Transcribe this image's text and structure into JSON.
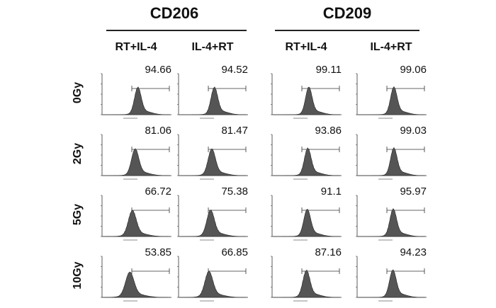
{
  "chart_data": {
    "type": "histogram-grid",
    "groups": [
      {
        "title": "CD206",
        "columns": [
          "RT+IL-4",
          "IL-4+RT"
        ]
      },
      {
        "title": "CD209",
        "columns": [
          "RT+IL-4",
          "IL-4+RT"
        ]
      }
    ],
    "rows": [
      "0Gy",
      "2Gy",
      "5Gy",
      "10Gy"
    ],
    "values": [
      [
        94.66,
        94.52,
        99.11,
        99.06
      ],
      [
        81.06,
        81.47,
        93.86,
        99.03
      ],
      [
        66.72,
        75.38,
        91.1,
        95.97
      ],
      [
        53.85,
        66.85,
        87.16,
        94.23
      ]
    ],
    "value_labels": [
      [
        "94.66",
        "94.52",
        "99.11",
        "99.06"
      ],
      [
        "81.06",
        "81.47",
        "93.86",
        "99.03"
      ],
      [
        "66.72",
        "75.38",
        "91.1",
        "95.97"
      ],
      [
        "53.85",
        "66.85",
        "87.16",
        "94.23"
      ]
    ],
    "histogram_color": "#555555"
  }
}
